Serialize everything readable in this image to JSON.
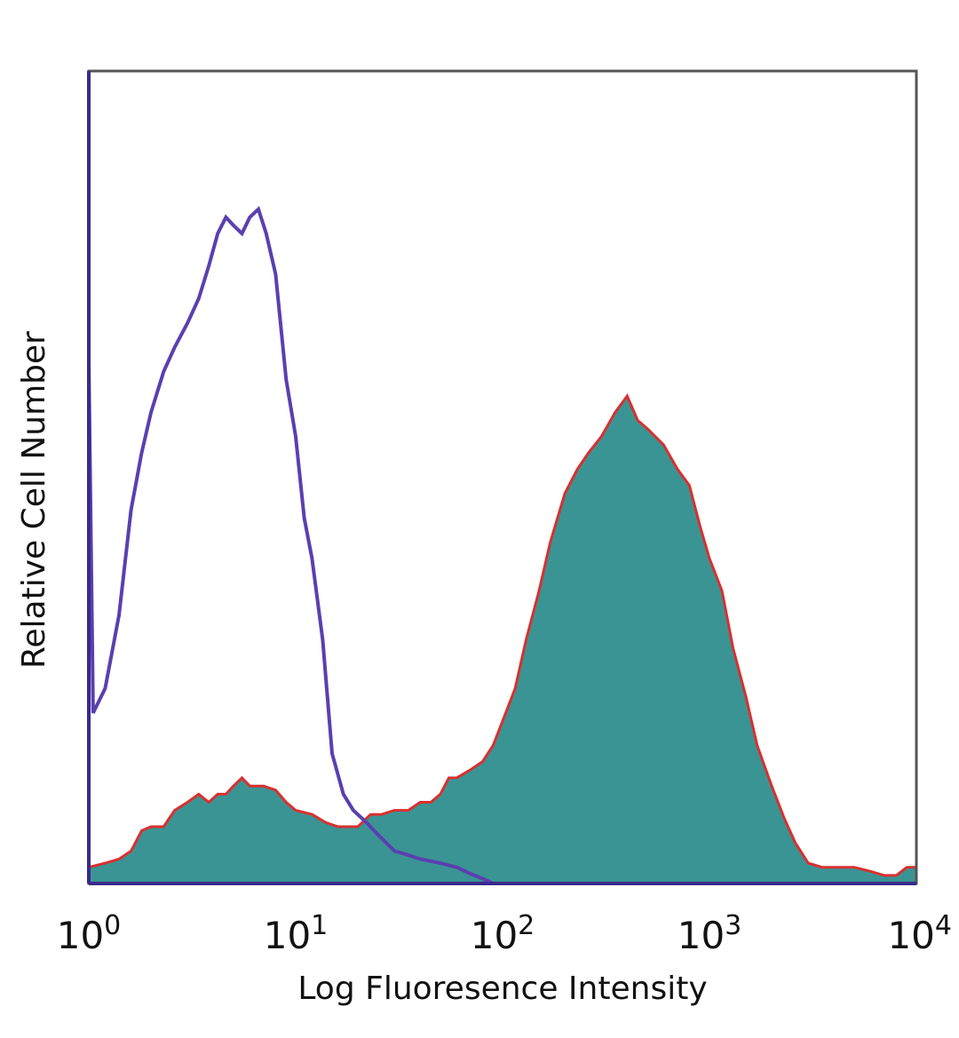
{
  "chart_data": {
    "type": "area",
    "title": "",
    "xlabel": "Log Fluoresence Intensity",
    "ylabel": "Relative Cell Number",
    "xscale": "log",
    "xlim": [
      1,
      10000
    ],
    "ylim": [
      0,
      1
    ],
    "grid": false,
    "legend": "none",
    "x_ticks": [
      {
        "base": "10",
        "exp": "0"
      },
      {
        "base": "10",
        "exp": "1"
      },
      {
        "base": "10",
        "exp": "2"
      },
      {
        "base": "10",
        "exp": "3"
      },
      {
        "base": "10",
        "exp": "4"
      }
    ],
    "series": [
      {
        "style": "outline",
        "color": "#5b3fb0",
        "x": [
          1,
          1.05,
          1.2,
          1.4,
          1.6,
          1.8,
          2.0,
          2.3,
          2.6,
          3.0,
          3.4,
          3.8,
          4.2,
          4.6,
          5.0,
          5.5,
          6.0,
          6.6,
          7.2,
          8.0,
          9.0,
          10,
          11,
          12,
          13.5,
          15,
          17,
          19,
          22,
          25,
          30,
          35,
          40,
          50,
          60,
          70,
          80,
          90
        ],
        "y": [
          0.64,
          0.21,
          0.24,
          0.33,
          0.46,
          0.53,
          0.58,
          0.63,
          0.66,
          0.69,
          0.72,
          0.76,
          0.8,
          0.82,
          0.81,
          0.8,
          0.82,
          0.83,
          0.8,
          0.75,
          0.62,
          0.55,
          0.45,
          0.4,
          0.3,
          0.16,
          0.11,
          0.09,
          0.075,
          0.06,
          0.04,
          0.035,
          0.03,
          0.025,
          0.02,
          0.012,
          0.006,
          0.0
        ]
      },
      {
        "style": "filled",
        "color": "#3a9494",
        "outline": "#d93030",
        "x": [
          1,
          1.2,
          1.4,
          1.6,
          1.8,
          2.0,
          2.3,
          2.6,
          3.0,
          3.4,
          3.8,
          4.2,
          4.6,
          5.0,
          5.5,
          6.0,
          7.0,
          8.0,
          9.0,
          10,
          12,
          14,
          16,
          18,
          20,
          23,
          26,
          30,
          35,
          40,
          45,
          50,
          55,
          60,
          70,
          80,
          90,
          100,
          115,
          130,
          150,
          170,
          200,
          230,
          260,
          300,
          350,
          400,
          450,
          500,
          600,
          700,
          800,
          900,
          1000,
          1150,
          1300,
          1500,
          1700,
          2000,
          2300,
          2600,
          3000,
          3500,
          4000,
          5000,
          6000,
          7000,
          8000,
          9000,
          10000
        ],
        "y": [
          0.02,
          0.025,
          0.03,
          0.04,
          0.065,
          0.07,
          0.07,
          0.09,
          0.1,
          0.11,
          0.1,
          0.11,
          0.11,
          0.12,
          0.13,
          0.12,
          0.12,
          0.115,
          0.1,
          0.09,
          0.085,
          0.075,
          0.07,
          0.07,
          0.07,
          0.085,
          0.085,
          0.09,
          0.09,
          0.1,
          0.1,
          0.11,
          0.13,
          0.13,
          0.14,
          0.15,
          0.17,
          0.2,
          0.24,
          0.3,
          0.36,
          0.42,
          0.48,
          0.51,
          0.53,
          0.55,
          0.58,
          0.6,
          0.57,
          0.56,
          0.54,
          0.51,
          0.49,
          0.44,
          0.4,
          0.36,
          0.29,
          0.23,
          0.17,
          0.12,
          0.08,
          0.05,
          0.025,
          0.02,
          0.02,
          0.02,
          0.015,
          0.01,
          0.01,
          0.02,
          0.02
        ]
      }
    ]
  }
}
